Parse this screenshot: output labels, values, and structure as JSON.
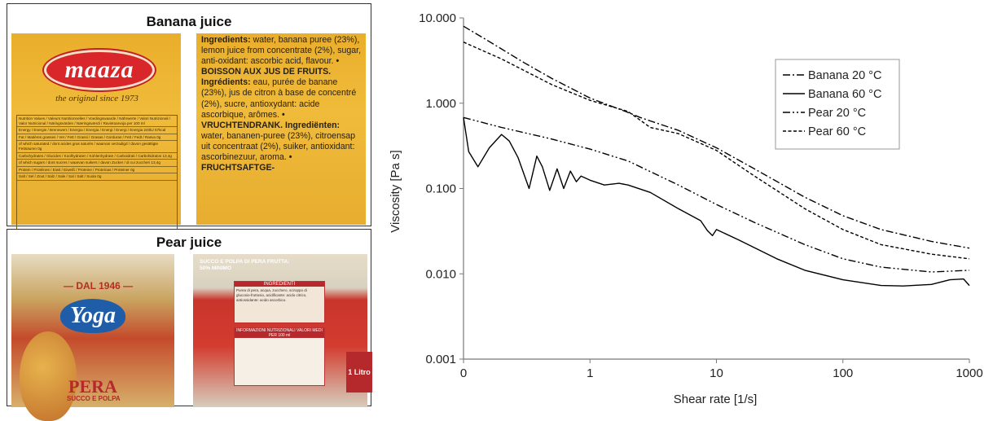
{
  "left_panels": {
    "banana": {
      "title": "Banana juice",
      "brand": "maaza",
      "tagline": "the original since 1973",
      "nutrition_rows": [
        "Nutrition Values / Valeurs Nutritionnelles / Voedingswaarde / Nährwerte / Valori Nutrizionali / Valor Nutricional / Näringsvärden / Næringsværdi / Ravintoarvoja per 100 ml",
        "Energy / Energie / Brennwert / Energia / Energia / Energi / Energi / Energia 240kJ 57kcal",
        "Fat / Matières grasses / Vet / Fett / Grassi / Grasas / Gorduras / Fett / Fedt / Rasva 0g",
        "of which saturated / dont acides gras saturés / waarvan verzadigd / davon gesättigte Fettsäuren 0g",
        "Carbohydrates / Glucides / Koolhydraten / Kohlenhydrate / Carboidrati / Carbohidratos 13,4g",
        "of which sugars / dont sucres / waarvan suikers / davon Zucker / di cui zuccheri 13,4g",
        "Protein / Protéines / Eiwit / Eiweiß / Proteine / Proteínas / Proteiner 0g",
        "Salt / Sel / Zout / Salz / Sale / Sal / Salt / Suola 0g"
      ],
      "ingredients": [
        {
          "bold": "Ingredients:",
          "text": " water, banana puree (23%), lemon juice from concentrate (2%), sugar, anti-oxidant: ascorbic acid, flavour."
        },
        {
          "bold": "• BOISSON AUX JUS DE FRUITS. Ingrédients:",
          "text": " eau, purée de banane (23%), jus de citron à base de concentré (2%), sucre, antioxydant: acide ascorbique, arômes."
        },
        {
          "bold": "• VRUCHTENDRANK. Ingrediënten:",
          "text": " water, bananen-puree (23%), citroensap uit concentraat (2%), suiker, antioxidant: ascorbinezuur, aroma."
        },
        {
          "bold": "• FRUCHTSAFTGE-",
          "text": ""
        }
      ]
    },
    "pear": {
      "title": "Pear juice",
      "since": "— DAL 1946 —",
      "brand": "Yoga",
      "product": "PERA",
      "product_sub": "SUCCO E POLPA",
      "back_header": "SUCCO E POLPA DI PERA FRUTTA: 50% MINIMO",
      "ingredients_header": "INGREDIENTI",
      "ingredients_text": "Purea di pera, acqua, zucchero, sciroppo di glucosio-fruttosio, acidificante: acido citrico, antiossidante: acido ascorbico.",
      "nutrition_header": "INFORMAZIONI NUTRIZIONALI VALORI MEDI PER 100 ml",
      "litro": "1 Litro"
    }
  },
  "chart_data": {
    "type": "line",
    "xlabel": "Shear rate [1/s]",
    "ylabel": "Viscosity [Pa s]",
    "xscale": "log",
    "yscale": "log",
    "xlim": [
      0.1,
      1000
    ],
    "ylim": [
      0.001,
      10
    ],
    "x_tick_labels": [
      "0",
      "1",
      "10",
      "100",
      "1000"
    ],
    "x_tick_values": [
      0.1,
      1,
      10,
      100,
      1000
    ],
    "y_tick_labels": [
      "0.001",
      "0.010",
      "0.100",
      "1.000",
      "10.000"
    ],
    "y_tick_values": [
      0.001,
      0.01,
      0.1,
      1,
      10
    ],
    "grid": false,
    "legend_position": "top-right",
    "series": [
      {
        "name": "Banana 20 °C",
        "dash": "dash-dot",
        "color": "#000000",
        "x": [
          0.1,
          0.15,
          0.3,
          0.5,
          1,
          2,
          2.5,
          3,
          5,
          10,
          20,
          50,
          100,
          200,
          500,
          1000
        ],
        "y": [
          8.0,
          5.6,
          3.0,
          1.95,
          1.15,
          0.78,
          0.68,
          0.62,
          0.48,
          0.3,
          0.17,
          0.079,
          0.048,
          0.033,
          0.024,
          0.02
        ]
      },
      {
        "name": "Banana 60 °C",
        "dash": "solid",
        "color": "#000000",
        "x": [
          0.1,
          0.11,
          0.13,
          0.16,
          0.2,
          0.23,
          0.27,
          0.33,
          0.38,
          0.42,
          0.48,
          0.55,
          0.62,
          0.7,
          0.78,
          0.85,
          1,
          1.3,
          1.7,
          2,
          3,
          5,
          7.5,
          8.5,
          9.3,
          10,
          15,
          30,
          50,
          100,
          200,
          300,
          500,
          700,
          900,
          1000
        ],
        "y": [
          0.68,
          0.27,
          0.18,
          0.3,
          0.43,
          0.36,
          0.23,
          0.1,
          0.24,
          0.18,
          0.095,
          0.17,
          0.1,
          0.16,
          0.12,
          0.14,
          0.125,
          0.11,
          0.115,
          0.11,
          0.09,
          0.058,
          0.042,
          0.032,
          0.028,
          0.033,
          0.025,
          0.015,
          0.011,
          0.0085,
          0.0073,
          0.0072,
          0.0075,
          0.0085,
          0.0087,
          0.0073
        ]
      },
      {
        "name": "Pear 20 °C",
        "dash": "dash-dot-dot",
        "color": "#000000",
        "x": [
          0.1,
          0.2,
          0.5,
          1,
          2,
          5,
          10,
          20,
          50,
          100,
          200,
          500,
          1000
        ],
        "y": [
          0.68,
          0.52,
          0.38,
          0.29,
          0.21,
          0.11,
          0.065,
          0.04,
          0.022,
          0.015,
          0.012,
          0.0105,
          0.011
        ]
      },
      {
        "name": "Pear 60 °C",
        "dash": "dashed",
        "color": "#000000",
        "x": [
          0.1,
          0.2,
          0.5,
          1,
          2,
          3,
          5,
          10,
          20,
          50,
          100,
          200,
          500,
          1000
        ],
        "y": [
          5.2,
          3.3,
          1.65,
          1.08,
          0.8,
          0.52,
          0.44,
          0.28,
          0.14,
          0.058,
          0.033,
          0.022,
          0.017,
          0.015
        ]
      }
    ]
  }
}
